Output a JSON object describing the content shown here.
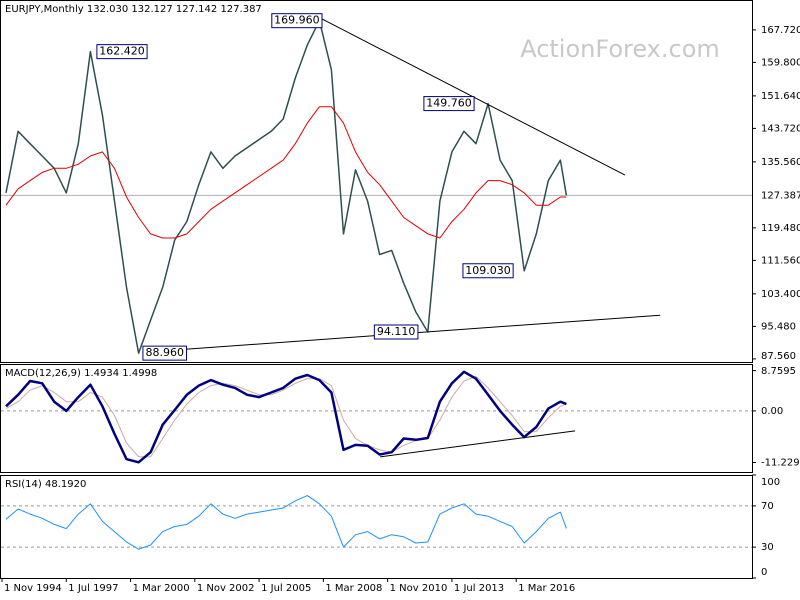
{
  "watermark": "ActionForex.com",
  "chart_data": [
    {
      "type": "line",
      "title": "EURJPY,Monthly  132.030 132.127 127.142 127.387",
      "xlim": [
        1994.75,
        2025.95
      ],
      "ylim": [
        86.8,
        175.0
      ],
      "yticks": [
        {
          "value": 167.72,
          "label": "167.720"
        },
        {
          "value": 159.8,
          "label": "159.800"
        },
        {
          "value": 151.64,
          "label": "151.640"
        },
        {
          "value": 143.72,
          "label": "143.720"
        },
        {
          "value": 135.56,
          "label": "135.560"
        },
        {
          "value": 119.48,
          "label": "119.480"
        },
        {
          "value": 111.56,
          "label": "111.560"
        },
        {
          "value": 103.4,
          "label": "103.400"
        },
        {
          "value": 95.48,
          "label": "95.480"
        },
        {
          "value": 87.56,
          "label": "87.560"
        }
      ],
      "last_price": 127.387,
      "x": [
        1995.0,
        1995.5,
        1996.0,
        1996.5,
        1997.0,
        1997.5,
        1998.0,
        1998.5,
        1999.0,
        1999.5,
        2000.0,
        2000.5,
        2001.0,
        2001.5,
        2002.0,
        2002.5,
        2003.0,
        2003.5,
        2004.0,
        2004.5,
        2005.0,
        2005.5,
        2006.0,
        2006.5,
        2007.0,
        2007.5,
        2008.0,
        2008.5,
        2009.0,
        2009.5,
        2010.0,
        2010.5,
        2011.0,
        2011.5,
        2012.0,
        2012.5,
        2013.0,
        2013.5,
        2014.0,
        2014.5,
        2015.0,
        2015.5,
        2016.0,
        2016.5,
        2017.0,
        2017.5,
        2018.0,
        2018.25
      ],
      "series": [
        {
          "color": "#2f4f4f",
          "values": [
            128,
            143,
            140,
            137,
            134,
            128,
            140,
            162.42,
            147,
            126,
            105,
            88.96,
            97,
            105,
            116.5,
            121,
            130,
            138,
            134,
            137,
            139,
            141,
            143,
            146,
            156,
            164,
            169.96,
            158,
            118,
            133.6,
            126,
            113,
            114,
            106,
            99,
            94.11,
            126,
            138,
            143,
            140,
            149.76,
            136,
            131,
            109.03,
            118,
            131,
            136,
            127.387
          ]
        },
        {
          "color": "#e00000",
          "values": [
            125,
            129,
            131,
            133,
            134,
            134,
            135,
            137,
            138,
            134,
            127,
            122,
            118,
            117,
            117,
            118,
            121,
            124,
            126,
            128,
            130,
            132,
            134,
            136,
            140,
            145,
            149,
            149,
            145,
            138,
            133,
            130,
            126,
            122,
            120,
            118,
            117,
            121,
            124,
            128,
            131,
            131,
            130,
            128,
            125,
            125,
            127,
            127
          ]
        }
      ],
      "trendlines": [
        {
          "x": [
            2008.02,
            2020.68
          ],
          "values": [
            170.65,
            132.35
          ]
        },
        {
          "x": [
            2000.77,
            2022.14
          ],
          "values": [
            89.2,
            98.2
          ]
        }
      ],
      "annotations": [
        {
          "x": 2008.11,
          "value": 169.96,
          "label": "169.960"
        },
        {
          "x": 1998.77,
          "value": 162.42,
          "label": "162.420"
        },
        {
          "x": 2014.42,
          "value": 149.76,
          "label": "149.760"
        },
        {
          "x": 2016.04,
          "value": 109.03,
          "label": "109.030"
        },
        {
          "x": 2012.09,
          "value": 94.11,
          "label": "94.110"
        },
        {
          "x": 2000.68,
          "value": 88.96,
          "label": "88.960"
        }
      ]
    },
    {
      "type": "line",
      "title": "MACD(12,26,9) 1.4934 1.4998",
      "xlim": [
        1994.75,
        2025.95
      ],
      "ylim": [
        -13.3,
        10.2
      ],
      "yticks": [
        8.7595,
        {
          "value": 0,
          "label": "0.00"
        },
        -11.2299
      ],
      "levels": [
        0
      ],
      "x": [
        1995.0,
        1995.5,
        1996.0,
        1996.5,
        1997.0,
        1997.5,
        1998.0,
        1998.5,
        1999.0,
        1999.5,
        2000.0,
        2000.5,
        2001.0,
        2001.5,
        2002.0,
        2002.5,
        2003.0,
        2003.5,
        2004.0,
        2004.5,
        2005.0,
        2005.5,
        2006.0,
        2006.5,
        2007.0,
        2007.5,
        2008.0,
        2008.5,
        2009.0,
        2009.5,
        2010.0,
        2010.5,
        2011.0,
        2011.5,
        2012.0,
        2012.5,
        2013.0,
        2013.5,
        2014.0,
        2014.5,
        2015.0,
        2015.5,
        2016.0,
        2016.5,
        2017.0,
        2017.5,
        2018.0,
        2018.25
      ],
      "series": [
        {
          "color": "#d0a8a8",
          "values": [
            0.5,
            2,
            4.5,
            5.5,
            4,
            2,
            2,
            4,
            3,
            -1,
            -7,
            -10,
            -10,
            -6,
            -2,
            1.5,
            4,
            5.5,
            6,
            5.5,
            4.5,
            3.5,
            3.5,
            4.5,
            6,
            7,
            7,
            5.5,
            -2,
            -6,
            -7.5,
            -8.5,
            -9,
            -7.5,
            -6.5,
            -6,
            -2,
            3,
            6.5,
            7.5,
            5,
            2,
            -1,
            -4.5,
            -4.5,
            -1.5,
            1,
            1.4998
          ]
        },
        {
          "color": "#000080",
          "values": [
            1,
            3.5,
            6.5,
            6,
            2,
            0,
            3,
            5.7,
            1,
            -5,
            -10.5,
            -11.2,
            -9,
            -3,
            0.2,
            3.5,
            5.5,
            6.7,
            5.7,
            5,
            3.5,
            3,
            4,
            5,
            7,
            7.8,
            6.7,
            4,
            -8.5,
            -7.4,
            -7.6,
            -9.5,
            -9,
            -6,
            -6.3,
            -5.9,
            2,
            6,
            8.5,
            7,
            3.5,
            0,
            -3,
            -5.7,
            -3.5,
            0.5,
            2,
            1.4934
          ]
        }
      ],
      "trendlines": [
        {
          "x": [
            2010.52,
            2018.61
          ],
          "values": [
            -10,
            -4.35
          ]
        }
      ]
    },
    {
      "type": "line",
      "title": "RSI(14) 48.1920",
      "xlim": [
        1994.75,
        2025.95
      ],
      "ylim": [
        0,
        100
      ],
      "yticks": [
        100,
        70,
        30,
        0
      ],
      "levels": [
        70,
        30
      ],
      "xticks": [
        {
          "value": 1994.833,
          "label": "1 Nov 1994"
        },
        {
          "value": 1997.5,
          "label": "1 Jul 1997"
        },
        {
          "value": 2000.167,
          "label": "1 Mar 2000"
        },
        {
          "value": 2002.833,
          "label": "1 Nov 2002"
        },
        {
          "value": 2005.5,
          "label": "1 Jul 2005"
        },
        {
          "value": 2008.167,
          "label": "1 Mar 2008"
        },
        {
          "value": 2010.833,
          "label": "1 Nov 2010"
        },
        {
          "value": 2013.5,
          "label": "1 Jul 2013"
        },
        {
          "value": 2016.167,
          "label": "1 Mar 2016"
        }
      ],
      "x": [
        1995.0,
        1995.5,
        1996.0,
        1996.5,
        1997.0,
        1997.5,
        1998.0,
        1998.5,
        1999.0,
        1999.5,
        2000.0,
        2000.5,
        2001.0,
        2001.5,
        2002.0,
        2002.5,
        2003.0,
        2003.5,
        2004.0,
        2004.5,
        2005.0,
        2005.5,
        2006.0,
        2006.5,
        2007.0,
        2007.5,
        2008.0,
        2008.5,
        2009.0,
        2009.5,
        2010.0,
        2010.5,
        2011.0,
        2011.5,
        2012.0,
        2012.5,
        2013.0,
        2013.5,
        2014.0,
        2014.5,
        2015.0,
        2015.5,
        2016.0,
        2016.5,
        2017.0,
        2017.5,
        2018.0,
        2018.25
      ],
      "series": [
        {
          "color": "#1e90ff",
          "values": [
            57,
            67,
            62,
            58,
            52,
            48,
            62,
            72,
            55,
            45,
            35,
            28,
            32,
            45,
            50,
            52,
            60,
            72,
            62,
            58,
            62,
            64,
            66,
            68,
            75,
            80,
            72,
            60,
            30,
            42,
            45,
            38,
            42,
            40,
            34,
            35,
            62,
            68,
            72,
            62,
            60,
            55,
            50,
            34,
            45,
            58,
            64,
            48.192
          ]
        }
      ]
    }
  ]
}
